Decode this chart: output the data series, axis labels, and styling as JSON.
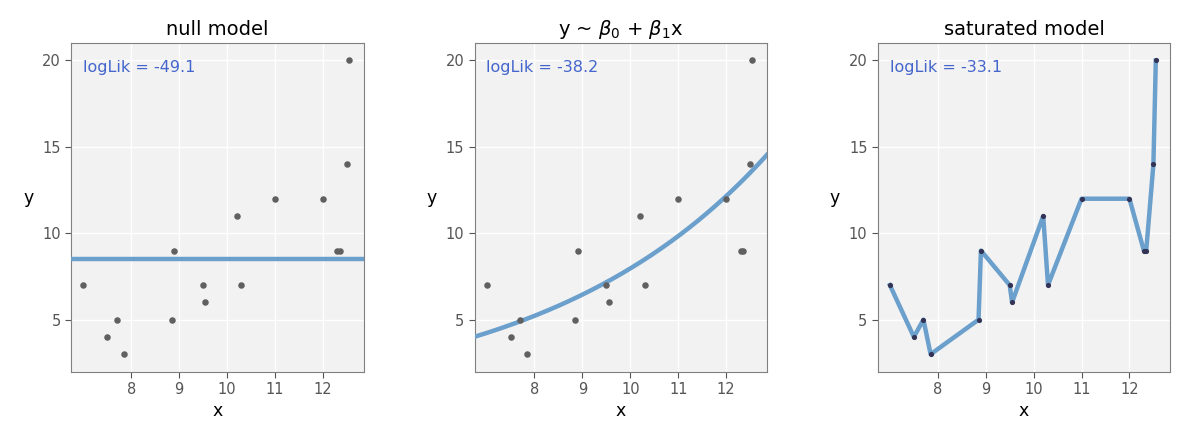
{
  "x": [
    7.0,
    7.5,
    7.7,
    7.85,
    8.85,
    8.9,
    9.5,
    9.55,
    10.2,
    10.3,
    11.0,
    12.0,
    12.3,
    12.35,
    12.5,
    12.55
  ],
  "y": [
    7,
    4,
    5,
    3,
    5,
    9,
    7,
    6,
    11,
    7,
    12,
    12,
    9,
    9,
    14,
    20
  ],
  "null_model_y": 8.5,
  "loglik_null": "logLik = -49.1",
  "loglik_linear": "logLik = -38.2",
  "loglik_saturated": "logLik = -33.1",
  "title_null": "null model",
  "title_saturated": "saturated model",
  "xlabel": "x",
  "ylabel": "y",
  "xlim": [
    6.75,
    12.85
  ],
  "ylim": [
    2.0,
    21.0
  ],
  "yticks": [
    5,
    10,
    15,
    20
  ],
  "xticks": [
    8,
    9,
    10,
    11,
    12
  ],
  "line_color": "#6B9FCC",
  "point_color": "#606060",
  "sat_point_color": "#333355",
  "loglik_color": "#4466CC",
  "panel_bg": "#F2F2F2",
  "grid_color": "#FFFFFF",
  "spine_color": "#AAAAAA",
  "line_width": 3.2,
  "point_size": 22,
  "sat_point_size": 14
}
